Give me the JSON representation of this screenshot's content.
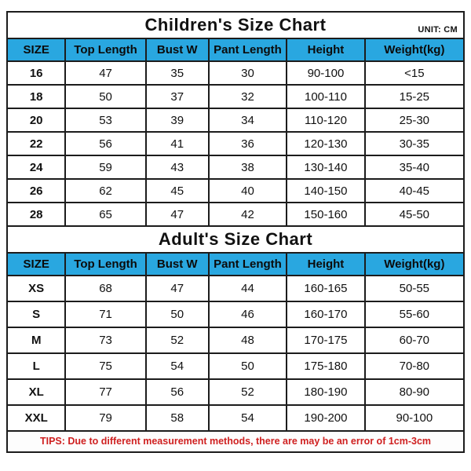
{
  "unit_label": "UNIT: CM",
  "tips": "TIPS: Due to different measurement methods, there are may be an error of 1cm-3cm",
  "colors": {
    "header_blue": "#29a7e0",
    "border_dark": "#1c1c1c",
    "tips_red": "#cf2020"
  },
  "chart_data": [
    {
      "type": "table",
      "title": "Children's Size Chart",
      "unit": "UNIT: CM",
      "columns": [
        "SIZE",
        "Top Length",
        "Bust W",
        "Pant Length",
        "Height",
        "Weight(kg)"
      ],
      "rows": [
        [
          "16",
          "47",
          "35",
          "30",
          "90-100",
          "<15"
        ],
        [
          "18",
          "50",
          "37",
          "32",
          "100-110",
          "15-25"
        ],
        [
          "20",
          "53",
          "39",
          "34",
          "110-120",
          "25-30"
        ],
        [
          "22",
          "56",
          "41",
          "36",
          "120-130",
          "30-35"
        ],
        [
          "24",
          "59",
          "43",
          "38",
          "130-140",
          "35-40"
        ],
        [
          "26",
          "62",
          "45",
          "40",
          "140-150",
          "40-45"
        ],
        [
          "28",
          "65",
          "47",
          "42",
          "150-160",
          "45-50"
        ]
      ]
    },
    {
      "type": "table",
      "title": "Adult's Size Chart",
      "columns": [
        "SIZE",
        "Top Length",
        "Bust W",
        "Pant Length",
        "Height",
        "Weight(kg)"
      ],
      "rows": [
        [
          "XS",
          "68",
          "47",
          "44",
          "160-165",
          "50-55"
        ],
        [
          "S",
          "71",
          "50",
          "46",
          "160-170",
          "55-60"
        ],
        [
          "M",
          "73",
          "52",
          "48",
          "170-175",
          "60-70"
        ],
        [
          "L",
          "75",
          "54",
          "50",
          "175-180",
          "70-80"
        ],
        [
          "XL",
          "77",
          "56",
          "52",
          "180-190",
          "80-90"
        ],
        [
          "XXL",
          "79",
          "58",
          "54",
          "190-200",
          "90-100"
        ]
      ]
    }
  ]
}
